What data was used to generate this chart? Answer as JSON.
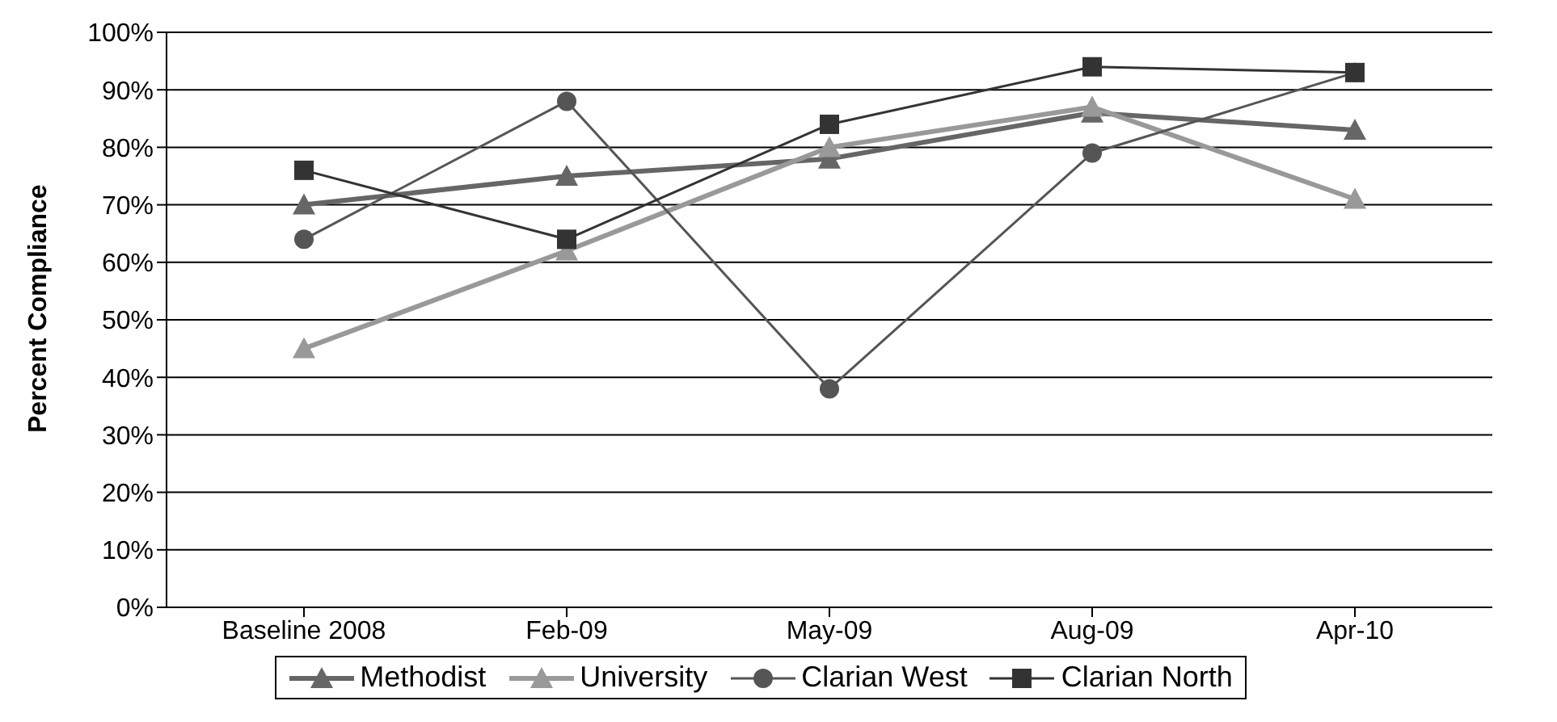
{
  "chart_data": {
    "type": "line",
    "ylabel": "Percent Compliance",
    "categories": [
      "Baseline 2008",
      "Feb-09",
      "May-09",
      "Aug-09",
      "Apr-10"
    ],
    "ylim": [
      0,
      100
    ],
    "yticks": [
      {
        "value": 0,
        "label": "0%"
      },
      {
        "value": 10,
        "label": "10%"
      },
      {
        "value": 20,
        "label": "20%"
      },
      {
        "value": 30,
        "label": "30%"
      },
      {
        "value": 40,
        "label": "40%"
      },
      {
        "value": 50,
        "label": "50%"
      },
      {
        "value": 60,
        "label": "60%"
      },
      {
        "value": 70,
        "label": "70%"
      },
      {
        "value": 80,
        "label": "80%"
      },
      {
        "value": 90,
        "label": "90%"
      },
      {
        "value": 100,
        "label": "100%"
      }
    ],
    "grid": "y",
    "legend": "bottom",
    "line_style": "solid",
    "series": [
      {
        "name": "Methodist",
        "color": "#666666",
        "marker": "triangle",
        "values": [
          70,
          75,
          78,
          86,
          83
        ]
      },
      {
        "name": "University",
        "color": "#999999",
        "marker": "triangle",
        "values": [
          45,
          62,
          80,
          87,
          71
        ]
      },
      {
        "name": "Clarian West",
        "color": "#555555",
        "marker": "circle",
        "values": [
          64,
          88,
          38,
          79,
          93
        ]
      },
      {
        "name": "Clarian North",
        "color": "#333333",
        "marker": "square",
        "values": [
          76,
          64,
          84,
          94,
          93
        ]
      }
    ]
  }
}
